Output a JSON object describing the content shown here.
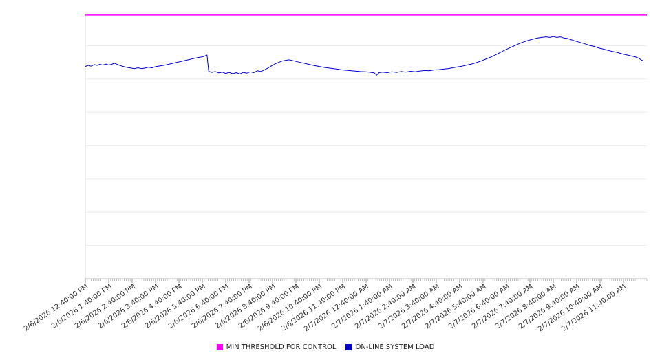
{
  "chart_data": {
    "type": "line",
    "title": "",
    "xlabel": "",
    "ylabel": "",
    "ylim": [
      0,
      100
    ],
    "grid_divisions": 8,
    "grid": true,
    "legend_position": "bottom",
    "x_hours_span": 24,
    "colors": {
      "grid": "#ececec",
      "axis": "#b8b8b8",
      "left_axis": "#dddddd",
      "tick": "#999999",
      "label": "#333333"
    },
    "categories": [
      "2/6/2026 12:40:00 PM",
      "2/6/2026 1:40:00 PM",
      "2/6/2026 2:40:00 PM",
      "2/6/2026 3:40:00 PM",
      "2/6/2026 4:40:00 PM",
      "2/6/2026 5:40:00 PM",
      "2/6/2026 6:40:00 PM",
      "2/6/2026 7:40:00 PM",
      "2/6/2026 8:40:00 PM",
      "2/6/2026 9:40:00 PM",
      "2/6/2026 10:40:00 PM",
      "2/6/2026 11:40:00 PM",
      "2/7/2026 12:40:00 AM",
      "2/7/2026 1:40:00 AM",
      "2/7/2026 2:40:00 AM",
      "2/7/2026 3:40:00 AM",
      "2/7/2026 4:40:00 AM",
      "2/7/2026 5:40:00 AM",
      "2/7/2026 6:40:00 AM",
      "2/7/2026 7:40:00 AM",
      "2/7/2026 8:40:00 AM",
      "2/7/2026 9:40:00 AM",
      "2/7/2026 10:40:00 AM",
      "2/7/2026 11:40:00 AM"
    ],
    "series": [
      {
        "name": "MIN THRESHOLD FOR CONTROL",
        "type": "threshold",
        "color": "#ff00ff",
        "value": 99
      },
      {
        "name": "ON-LINE SYSTEM LOAD",
        "type": "line",
        "color": "#0000cd",
        "points": [
          [
            0,
            79.7
          ],
          [
            0.12,
            80.1
          ],
          [
            0.25,
            79.8
          ],
          [
            0.38,
            80.4
          ],
          [
            0.5,
            80.1
          ],
          [
            0.62,
            80.5
          ],
          [
            0.75,
            80.2
          ],
          [
            0.88,
            80.6
          ],
          [
            1.0,
            80.2
          ],
          [
            1.12,
            80.5
          ],
          [
            1.25,
            80.9
          ],
          [
            1.38,
            80.4
          ],
          [
            1.5,
            80.0
          ],
          [
            1.65,
            79.6
          ],
          [
            1.8,
            79.3
          ],
          [
            1.95,
            79.1
          ],
          [
            2.1,
            78.9
          ],
          [
            2.25,
            79.2
          ],
          [
            2.4,
            78.9
          ],
          [
            2.55,
            79.1
          ],
          [
            2.7,
            79.4
          ],
          [
            2.85,
            79.2
          ],
          [
            3.0,
            79.6
          ],
          [
            3.2,
            79.9
          ],
          [
            3.4,
            80.2
          ],
          [
            3.6,
            80.6
          ],
          [
            3.8,
            81.0
          ],
          [
            4.0,
            81.4
          ],
          [
            4.2,
            81.8
          ],
          [
            4.4,
            82.2
          ],
          [
            4.6,
            82.6
          ],
          [
            4.8,
            83.0
          ],
          [
            5.0,
            83.3
          ],
          [
            5.1,
            83.6
          ],
          [
            5.2,
            84.0
          ],
          [
            5.27,
            77.9
          ],
          [
            5.4,
            77.5
          ],
          [
            5.55,
            77.8
          ],
          [
            5.7,
            77.3
          ],
          [
            5.85,
            77.6
          ],
          [
            6.0,
            77.1
          ],
          [
            6.15,
            77.5
          ],
          [
            6.3,
            77.0
          ],
          [
            6.45,
            77.4
          ],
          [
            6.6,
            76.9
          ],
          [
            6.75,
            77.5
          ],
          [
            6.9,
            77.2
          ],
          [
            7.05,
            77.7
          ],
          [
            7.2,
            77.4
          ],
          [
            7.35,
            78.1
          ],
          [
            7.5,
            77.8
          ],
          [
            7.65,
            78.4
          ],
          [
            7.8,
            79.1
          ],
          [
            7.95,
            79.9
          ],
          [
            8.1,
            80.6
          ],
          [
            8.25,
            81.2
          ],
          [
            8.4,
            81.7
          ],
          [
            8.55,
            82.0
          ],
          [
            8.7,
            82.2
          ],
          [
            8.85,
            81.9
          ],
          [
            9.0,
            81.6
          ],
          [
            9.2,
            81.2
          ],
          [
            9.4,
            80.8
          ],
          [
            9.6,
            80.4
          ],
          [
            9.8,
            80.0
          ],
          [
            10.0,
            79.7
          ],
          [
            10.25,
            79.3
          ],
          [
            10.5,
            79.0
          ],
          [
            10.75,
            78.7
          ],
          [
            11.0,
            78.4
          ],
          [
            11.25,
            78.2
          ],
          [
            11.5,
            78.0
          ],
          [
            11.75,
            77.8
          ],
          [
            12.0,
            77.7
          ],
          [
            12.2,
            77.5
          ],
          [
            12.35,
            77.3
          ],
          [
            12.45,
            76.4
          ],
          [
            12.55,
            77.4
          ],
          [
            12.7,
            77.6
          ],
          [
            12.9,
            77.4
          ],
          [
            13.1,
            77.7
          ],
          [
            13.3,
            77.5
          ],
          [
            13.5,
            77.8
          ],
          [
            13.7,
            77.6
          ],
          [
            13.9,
            77.9
          ],
          [
            14.1,
            77.7
          ],
          [
            14.3,
            78.0
          ],
          [
            14.5,
            78.2
          ],
          [
            14.7,
            78.1
          ],
          [
            14.9,
            78.4
          ],
          [
            15.1,
            78.5
          ],
          [
            15.3,
            78.7
          ],
          [
            15.5,
            78.9
          ],
          [
            15.7,
            79.2
          ],
          [
            15.9,
            79.5
          ],
          [
            16.1,
            79.8
          ],
          [
            16.3,
            80.2
          ],
          [
            16.5,
            80.6
          ],
          [
            16.7,
            81.1
          ],
          [
            16.9,
            81.7
          ],
          [
            17.1,
            82.4
          ],
          [
            17.3,
            83.1
          ],
          [
            17.5,
            83.9
          ],
          [
            17.7,
            84.8
          ],
          [
            17.9,
            85.7
          ],
          [
            18.1,
            86.5
          ],
          [
            18.3,
            87.3
          ],
          [
            18.5,
            88.1
          ],
          [
            18.7,
            88.8
          ],
          [
            18.9,
            89.4
          ],
          [
            19.1,
            89.9
          ],
          [
            19.3,
            90.3
          ],
          [
            19.5,
            90.6
          ],
          [
            19.7,
            90.8
          ],
          [
            19.85,
            90.6
          ],
          [
            20.0,
            90.9
          ],
          [
            20.15,
            90.6
          ],
          [
            20.3,
            90.8
          ],
          [
            20.45,
            90.4
          ],
          [
            20.6,
            90.2
          ],
          [
            20.75,
            89.8
          ],
          [
            20.95,
            89.2
          ],
          [
            21.15,
            88.7
          ],
          [
            21.35,
            88.2
          ],
          [
            21.55,
            87.6
          ],
          [
            21.75,
            87.2
          ],
          [
            21.95,
            86.6
          ],
          [
            22.15,
            86.2
          ],
          [
            22.35,
            85.7
          ],
          [
            22.55,
            85.3
          ],
          [
            22.75,
            84.9
          ],
          [
            22.95,
            84.4
          ],
          [
            23.15,
            84.0
          ],
          [
            23.35,
            83.6
          ],
          [
            23.5,
            83.3
          ],
          [
            23.65,
            82.8
          ],
          [
            23.75,
            82.2
          ],
          [
            23.85,
            81.8
          ]
        ]
      }
    ]
  },
  "legend": {
    "items": [
      {
        "label": "MIN THRESHOLD FOR CONTROL"
      },
      {
        "label": "ON-LINE SYSTEM LOAD"
      }
    ]
  }
}
